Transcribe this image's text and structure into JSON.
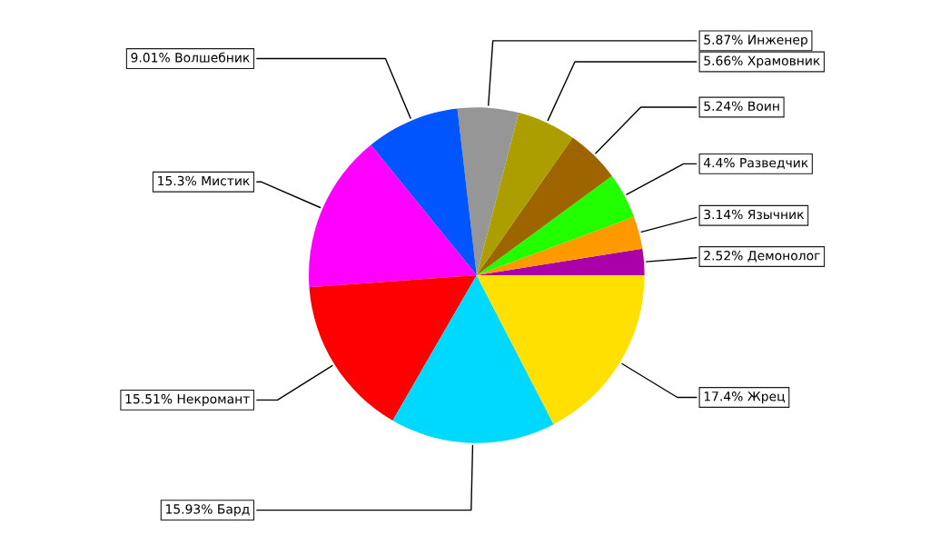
{
  "chart_data": {
    "type": "pie",
    "categories": [
      "Демонолог",
      "Язычник",
      "Разведчик",
      "Воин",
      "Храмовник",
      "Инженер",
      "Волшебник",
      "Мистик",
      "Некромант",
      "Бард",
      "Жрец"
    ],
    "values": [
      2.52,
      3.14,
      4.4,
      5.24,
      5.66,
      5.87,
      9.01,
      15.3,
      15.51,
      15.93,
      17.4
    ],
    "colors": [
      "#aa00aa",
      "#ff9900",
      "#22ff00",
      "#9e6400",
      "#ad9e00",
      "#969696",
      "#0055ff",
      "#ff00ff",
      "#ff0000",
      "#00d9ff",
      "#ffe000"
    ],
    "value_labels": [
      "2.52%",
      "3.14%",
      "4.4%",
      "5.24%",
      "5.66%",
      "5.87%",
      "9.01%",
      "15.3%",
      "15.51%",
      "15.93%",
      "17.4%"
    ]
  }
}
